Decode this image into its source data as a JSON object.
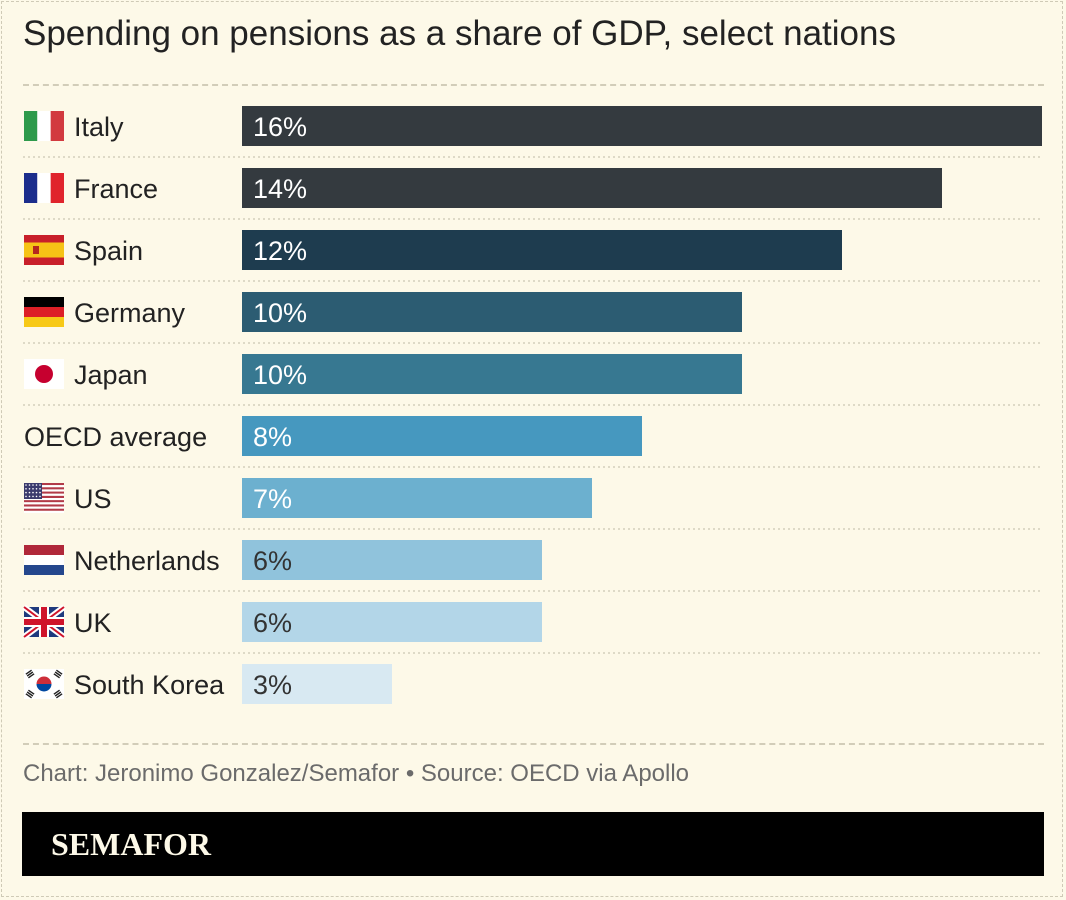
{
  "title": "Spending on pensions as a share of GDP, select nations",
  "source": "Chart: Jeronimo Gonzalez/Semafor • Source: OECD via Apollo",
  "brand": "SEMAFOR",
  "chart_data": {
    "type": "bar",
    "orientation": "horizontal",
    "title": "Spending on pensions as a share of GDP, select nations",
    "unit": "%",
    "categories": [
      "Italy",
      "France",
      "Spain",
      "Germany",
      "Japan",
      "OECD average",
      "US",
      "Netherlands",
      "UK",
      "South Korea"
    ],
    "values": [
      16,
      14,
      12,
      10,
      10,
      8,
      7,
      6,
      6,
      3
    ],
    "labels": [
      "16%",
      "14%",
      "12%",
      "10%",
      "10%",
      "8%",
      "7%",
      "6%",
      "6%",
      "3%"
    ],
    "flags": [
      "italy-flag",
      "france-flag",
      "spain-flag",
      "germany-flag",
      "japan-flag",
      "",
      "us-flag",
      "netherlands-flag",
      "uk-flag",
      "south-korea-flag"
    ],
    "bar_colors": [
      "#343a3f",
      "#343a3f",
      "#1e3c4f",
      "#2c5c72",
      "#377891",
      "#4698bf",
      "#6cb0cf",
      "#90c3dc",
      "#b3d6e8",
      "#d8e9f2"
    ],
    "label_colors": [
      "#ffffff",
      "#ffffff",
      "#ffffff",
      "#ffffff",
      "#ffffff",
      "#ffffff",
      "#ffffff",
      "#333333",
      "#333333",
      "#333333"
    ],
    "xlim": [
      0,
      16
    ],
    "grid": false,
    "legend": "none"
  }
}
